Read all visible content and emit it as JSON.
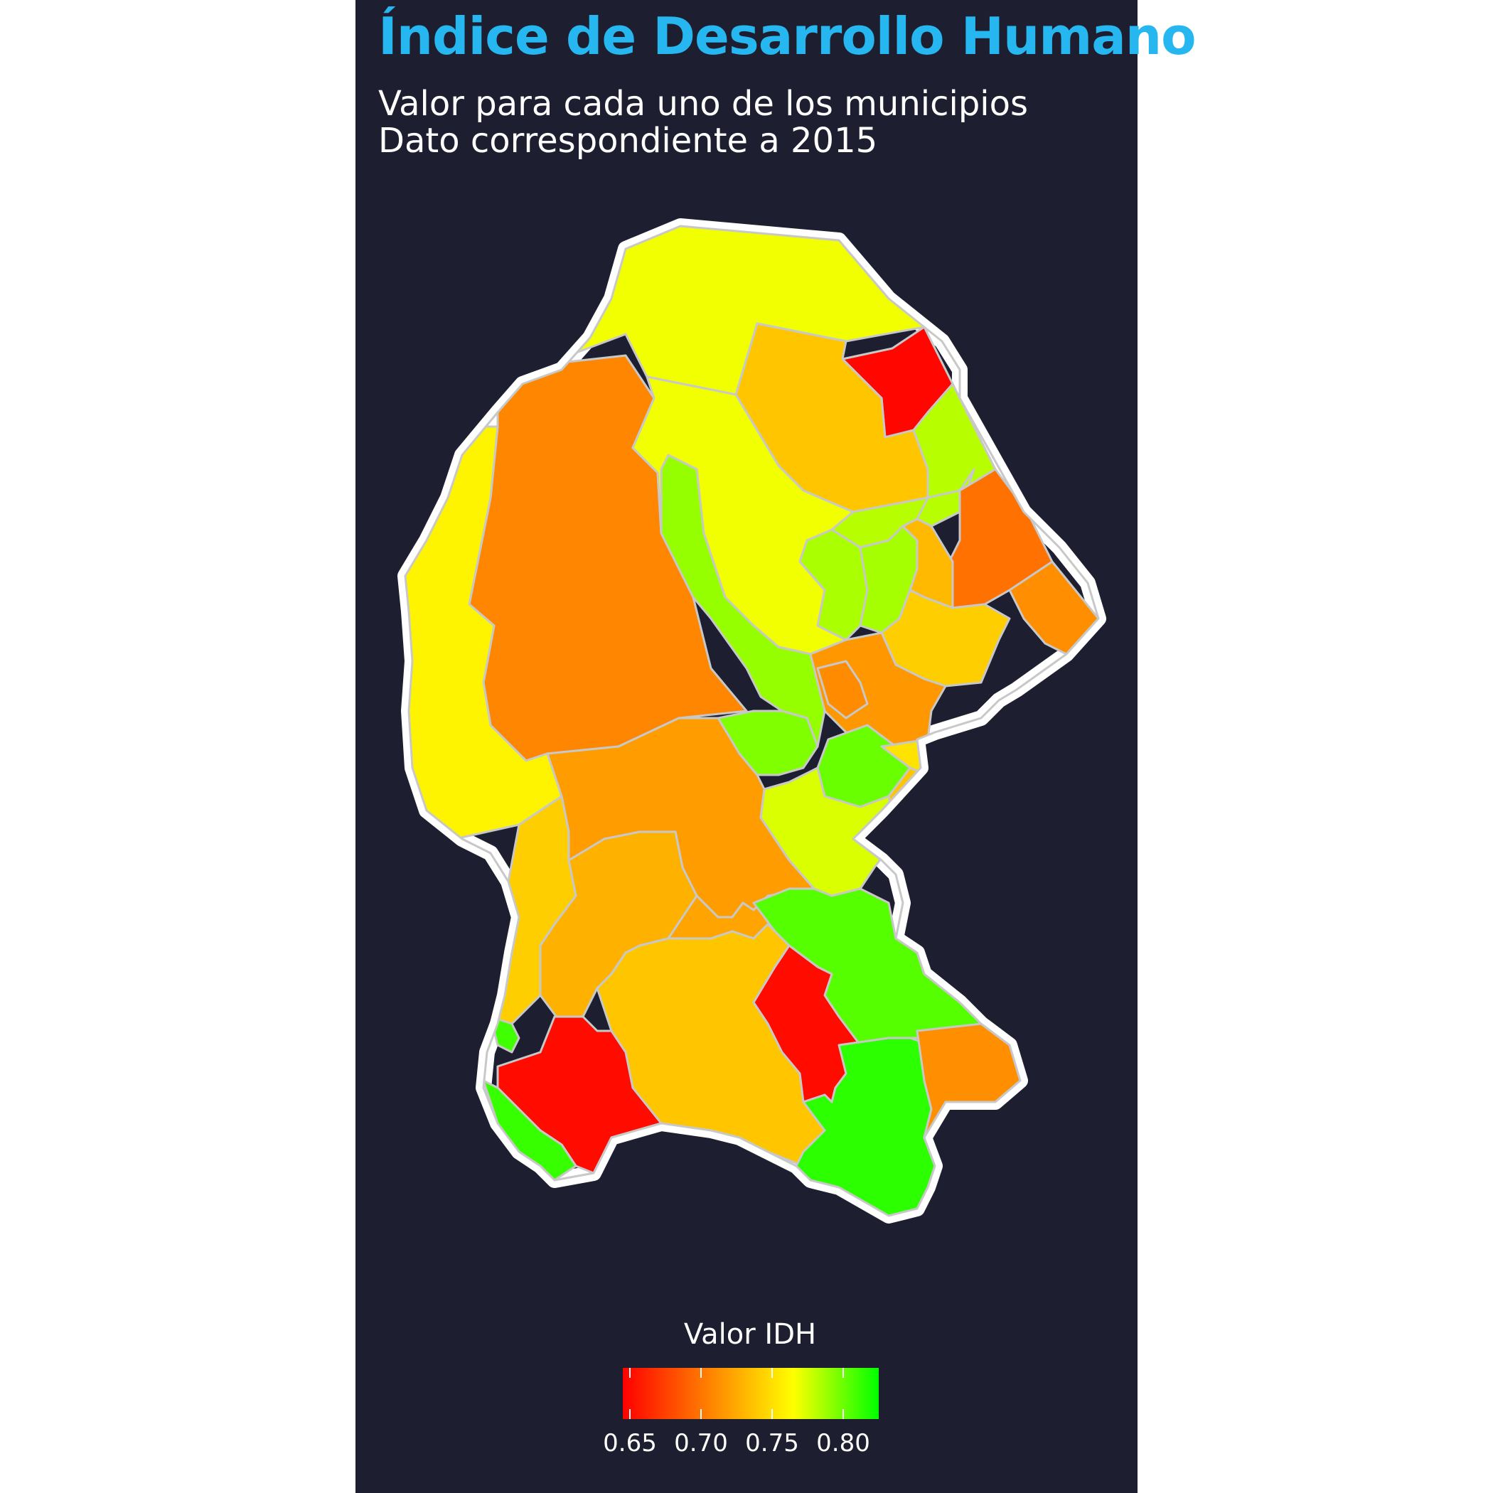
{
  "title": "Índice de Desarrollo Humano",
  "title_color": "#27b7f0",
  "subtitle_line1": "Valor para cada uno de los municipios",
  "subtitle_line2": "Dato correspondiente a 2015",
  "legend": {
    "title": "Valor IDH",
    "min": 0.645,
    "max": 0.825,
    "ticks": [
      {
        "value": 0.65,
        "label": "0.65"
      },
      {
        "value": 0.7,
        "label": "0.70"
      },
      {
        "value": 0.75,
        "label": "0.75"
      },
      {
        "value": 0.8,
        "label": "0.80"
      }
    ],
    "color_stops": [
      "#ff0000",
      "#ff8000",
      "#ffff00",
      "#00ff00"
    ]
  },
  "colors": {
    "background": "#1d1f30",
    "outer_border": "#ffffff",
    "municipality_border": "#c8c8c8"
  }
}
